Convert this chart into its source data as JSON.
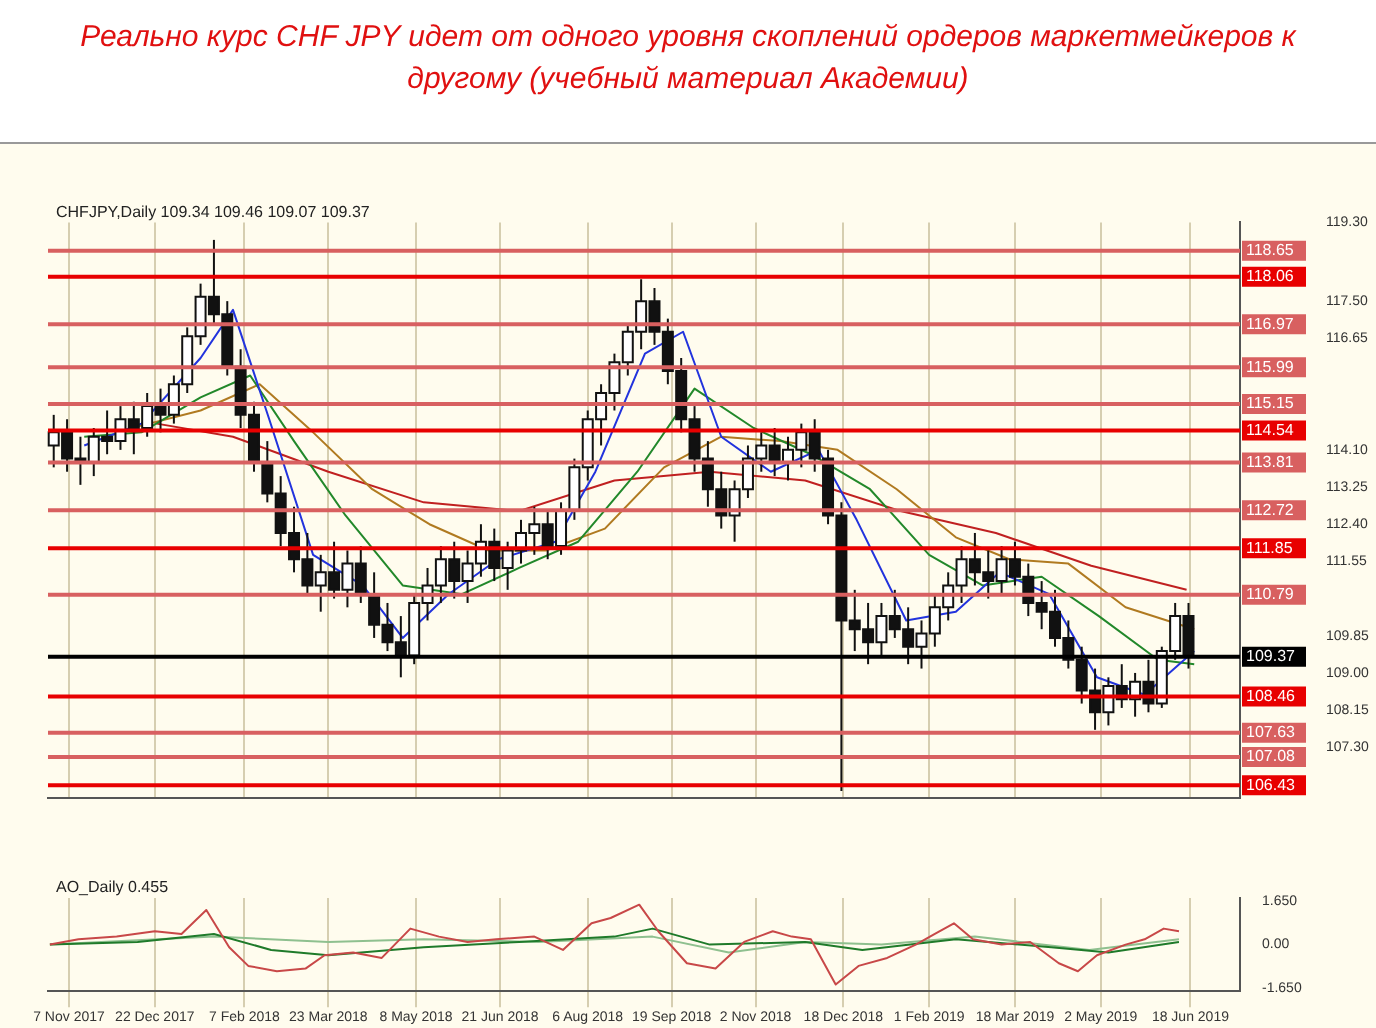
{
  "chart_data": [
    {
      "type": "candlestick",
      "title": "Реально курс CHF JPY идет от одного уровня скоплений ордеров маркетмейкеров к другому (учебный материал Академии)",
      "annotations": [
        "CHFJPY,Daily 109.34 109.46 109.07 109.37"
      ],
      "x": [
        "2017-10-30",
        "2017-11-06",
        "2017-11-13",
        "2017-11-20",
        "2017-11-27",
        "2017-12-04",
        "2017-12-11",
        "2017-12-18",
        "2017-12-25",
        "2018-01-01",
        "2018-01-08",
        "2018-01-15",
        "2018-01-22",
        "2018-01-29",
        "2018-02-05",
        "2018-02-12",
        "2018-02-19",
        "2018-02-26",
        "2018-03-05",
        "2018-03-12",
        "2018-03-19",
        "2018-03-26",
        "2018-04-02",
        "2018-04-09",
        "2018-04-16",
        "2018-04-23",
        "2018-04-30",
        "2018-05-07",
        "2018-05-14",
        "2018-05-21",
        "2018-05-28",
        "2018-06-04",
        "2018-06-11",
        "2018-06-18",
        "2018-06-25",
        "2018-07-02",
        "2018-07-09",
        "2018-07-16",
        "2018-07-23",
        "2018-07-30",
        "2018-08-06",
        "2018-08-13",
        "2018-08-20",
        "2018-08-27",
        "2018-09-03",
        "2018-09-10",
        "2018-09-17",
        "2018-09-24",
        "2018-10-01",
        "2018-10-08",
        "2018-10-15",
        "2018-10-22",
        "2018-10-29",
        "2018-11-05",
        "2018-11-12",
        "2018-11-19",
        "2018-11-26",
        "2018-12-03",
        "2018-12-10",
        "2018-12-17",
        "2018-12-24",
        "2018-12-31",
        "2019-01-07",
        "2019-01-14",
        "2019-01-21",
        "2019-01-28",
        "2019-02-04",
        "2019-02-11",
        "2019-02-18",
        "2019-02-25",
        "2019-03-04",
        "2019-03-11",
        "2019-03-18",
        "2019-03-25",
        "2019-04-01",
        "2019-04-08",
        "2019-04-15",
        "2019-04-22",
        "2019-04-29",
        "2019-05-06",
        "2019-05-13",
        "2019-05-20",
        "2019-05-27",
        "2019-06-03",
        "2019-06-10",
        "2019-06-17"
      ],
      "ohlc": [
        [
          114.2,
          114.9,
          113.7,
          114.5
        ],
        [
          114.5,
          114.8,
          113.6,
          113.9
        ],
        [
          113.9,
          114.4,
          113.3,
          113.8
        ],
        [
          113.8,
          114.6,
          113.5,
          114.4
        ],
        [
          114.4,
          115.0,
          114.0,
          114.3
        ],
        [
          114.3,
          115.1,
          114.1,
          114.8
        ],
        [
          114.8,
          115.2,
          114.0,
          114.6
        ],
        [
          114.6,
          115.4,
          114.4,
          115.1
        ],
        [
          115.1,
          115.5,
          114.5,
          114.9
        ],
        [
          114.9,
          115.8,
          114.7,
          115.6
        ],
        [
          115.6,
          116.9,
          115.4,
          116.7
        ],
        [
          116.7,
          117.9,
          116.5,
          117.6
        ],
        [
          117.6,
          118.9,
          117.0,
          117.2
        ],
        [
          117.2,
          117.5,
          115.8,
          116.0
        ],
        [
          116.0,
          116.4,
          114.6,
          114.9
        ],
        [
          114.9,
          115.2,
          113.6,
          113.8
        ],
        [
          113.8,
          114.3,
          112.9,
          113.1
        ],
        [
          113.1,
          113.5,
          111.9,
          112.2
        ],
        [
          112.2,
          112.8,
          111.3,
          111.6
        ],
        [
          111.6,
          112.2,
          110.8,
          111.0
        ],
        [
          111.0,
          111.7,
          110.4,
          111.3
        ],
        [
          111.3,
          112.0,
          110.7,
          110.9
        ],
        [
          110.9,
          111.8,
          110.5,
          111.5
        ],
        [
          111.5,
          111.9,
          110.6,
          110.8
        ],
        [
          110.8,
          111.3,
          109.8,
          110.1
        ],
        [
          110.1,
          110.6,
          109.5,
          109.7
        ],
        [
          109.7,
          110.3,
          108.9,
          109.4
        ],
        [
          109.4,
          110.8,
          109.2,
          110.6
        ],
        [
          110.6,
          111.4,
          110.2,
          111.0
        ],
        [
          111.0,
          111.9,
          110.6,
          111.6
        ],
        [
          111.6,
          112.0,
          110.7,
          111.1
        ],
        [
          111.1,
          111.8,
          110.6,
          111.5
        ],
        [
          111.5,
          112.4,
          111.2,
          112.0
        ],
        [
          112.0,
          112.3,
          111.1,
          111.4
        ],
        [
          111.4,
          112.0,
          110.9,
          111.8
        ],
        [
          111.8,
          112.5,
          111.5,
          112.2
        ],
        [
          112.2,
          112.8,
          111.7,
          112.4
        ],
        [
          112.4,
          112.7,
          111.6,
          111.9
        ],
        [
          111.9,
          112.9,
          111.7,
          112.7
        ],
        [
          112.7,
          113.9,
          112.5,
          113.7
        ],
        [
          113.7,
          115.0,
          113.4,
          114.8
        ],
        [
          114.8,
          115.6,
          114.2,
          115.4
        ],
        [
          115.4,
          116.3,
          115.0,
          116.1
        ],
        [
          116.1,
          117.0,
          115.8,
          116.8
        ],
        [
          116.8,
          118.0,
          116.4,
          117.5
        ],
        [
          117.5,
          117.8,
          116.5,
          116.8
        ],
        [
          116.8,
          117.1,
          115.6,
          115.9
        ],
        [
          115.9,
          116.2,
          114.5,
          114.8
        ],
        [
          114.8,
          115.1,
          113.6,
          113.9
        ],
        [
          113.9,
          114.3,
          112.8,
          113.2
        ],
        [
          113.2,
          113.6,
          112.3,
          112.6
        ],
        [
          112.6,
          113.4,
          112.0,
          113.2
        ],
        [
          113.2,
          114.2,
          113.0,
          113.9
        ],
        [
          113.9,
          114.5,
          113.6,
          114.2
        ],
        [
          114.2,
          114.6,
          113.5,
          113.8
        ],
        [
          113.8,
          114.4,
          113.4,
          114.1
        ],
        [
          114.1,
          114.7,
          113.7,
          114.5
        ],
        [
          114.5,
          114.8,
          113.6,
          113.9
        ],
        [
          113.9,
          114.1,
          112.4,
          112.6
        ],
        [
          112.6,
          112.9,
          106.3,
          110.2
        ],
        [
          110.2,
          110.9,
          109.5,
          110.0
        ],
        [
          110.0,
          110.6,
          109.2,
          109.7
        ],
        [
          109.7,
          110.6,
          109.4,
          110.3
        ],
        [
          110.3,
          110.9,
          109.8,
          110.0
        ],
        [
          110.0,
          110.5,
          109.2,
          109.6
        ],
        [
          109.6,
          110.2,
          109.1,
          109.9
        ],
        [
          109.9,
          110.8,
          109.6,
          110.5
        ],
        [
          110.5,
          111.3,
          110.2,
          111.0
        ],
        [
          111.0,
          111.9,
          110.6,
          111.6
        ],
        [
          111.6,
          112.2,
          111.0,
          111.3
        ],
        [
          111.3,
          111.8,
          110.7,
          111.1
        ],
        [
          111.1,
          111.9,
          110.8,
          111.6
        ],
        [
          111.6,
          112.0,
          111.0,
          111.2
        ],
        [
          111.2,
          111.5,
          110.3,
          110.6
        ],
        [
          110.6,
          111.1,
          110.0,
          110.4
        ],
        [
          110.4,
          110.9,
          109.6,
          109.8
        ],
        [
          109.8,
          110.2,
          109.1,
          109.3
        ],
        [
          109.3,
          109.6,
          108.3,
          108.6
        ],
        [
          108.6,
          109.1,
          107.7,
          108.1
        ],
        [
          108.1,
          108.9,
          107.8,
          108.7
        ],
        [
          108.7,
          109.2,
          108.2,
          108.4
        ],
        [
          108.4,
          109.0,
          108.0,
          108.8
        ],
        [
          108.8,
          109.3,
          108.1,
          108.3
        ],
        [
          108.3,
          109.6,
          108.2,
          109.5
        ],
        [
          109.5,
          110.6,
          109.3,
          110.3
        ],
        [
          110.3,
          110.6,
          109.1,
          109.4
        ]
      ],
      "series": [
        {
          "type": "line",
          "color": "#2233dd",
          "x": [
            "2017-11-15",
            "2017-12-15",
            "2018-01-15",
            "2018-02-01",
            "2018-02-20",
            "2018-03-15",
            "2018-04-10",
            "2018-05-01",
            "2018-05-25",
            "2018-06-20",
            "2018-07-20",
            "2018-08-10",
            "2018-09-05",
            "2018-09-25",
            "2018-10-15",
            "2018-11-10",
            "2018-12-05",
            "2018-12-25",
            "2019-01-20",
            "2019-02-15",
            "2019-03-10",
            "2019-04-05",
            "2019-04-30",
            "2019-05-25",
            "2019-06-20"
          ],
          "values": [
            114.2,
            114.7,
            116.2,
            117.3,
            114.8,
            111.7,
            111.0,
            109.8,
            110.8,
            111.6,
            112.0,
            113.6,
            116.3,
            116.8,
            114.4,
            113.6,
            114.1,
            112.5,
            110.2,
            110.4,
            111.3,
            110.8,
            108.9,
            108.5,
            109.5
          ]
        },
        {
          "type": "line",
          "color": "#22882a",
          "x": [
            "2017-11-15",
            "2017-12-15",
            "2018-01-15",
            "2018-02-10",
            "2018-03-05",
            "2018-04-01",
            "2018-05-01",
            "2018-06-01",
            "2018-07-01",
            "2018-08-01",
            "2018-09-01",
            "2018-10-01",
            "2018-11-01",
            "2018-12-01",
            "2019-01-01",
            "2019-02-01",
            "2019-03-01",
            "2019-04-01",
            "2019-05-01",
            "2019-06-01",
            "2019-06-20"
          ],
          "values": [
            114.4,
            114.5,
            115.3,
            115.8,
            114.3,
            112.6,
            111.0,
            110.8,
            111.4,
            112.0,
            113.6,
            115.5,
            114.6,
            114.0,
            113.2,
            111.7,
            111.0,
            111.2,
            110.3,
            109.3,
            109.2
          ]
        },
        {
          "type": "line",
          "color": "#b07a20",
          "x": [
            "2017-12-01",
            "2018-01-15",
            "2018-02-15",
            "2018-03-15",
            "2018-04-15",
            "2018-05-15",
            "2018-06-15",
            "2018-07-15",
            "2018-08-15",
            "2018-09-15",
            "2018-10-15",
            "2018-11-15",
            "2018-12-15",
            "2019-01-15",
            "2019-02-15",
            "2019-03-15",
            "2019-04-15",
            "2019-05-15",
            "2019-06-20"
          ],
          "values": [
            114.5,
            115.0,
            115.6,
            114.5,
            113.2,
            112.4,
            111.8,
            111.8,
            112.3,
            113.7,
            114.4,
            114.3,
            114.1,
            113.2,
            112.1,
            111.6,
            111.5,
            110.5,
            110.0
          ]
        },
        {
          "type": "line",
          "color": "#c02020",
          "x": [
            "2017-12-23",
            "2018-02-01",
            "2018-03-23",
            "2018-05-12",
            "2018-07-01",
            "2018-08-20",
            "2018-10-09",
            "2018-11-28",
            "2019-01-17",
            "2019-03-08",
            "2019-04-27",
            "2019-06-16"
          ],
          "values": [
            114.7,
            114.4,
            113.6,
            112.9,
            112.7,
            113.4,
            113.6,
            113.4,
            112.7,
            112.2,
            111.45,
            110.9
          ]
        }
      ],
      "ref_lines": [
        {
          "axis": "y",
          "value": 118.65,
          "label": "118.65",
          "color": "#d86060"
        },
        {
          "axis": "y",
          "value": 118.06,
          "label": "118.06",
          "color": "#e80000"
        },
        {
          "axis": "y",
          "value": 116.97,
          "label": "116.97",
          "color": "#d86060"
        },
        {
          "axis": "y",
          "value": 115.99,
          "label": "115.99",
          "color": "#d86060"
        },
        {
          "axis": "y",
          "value": 115.15,
          "label": "115.15",
          "color": "#d86060"
        },
        {
          "axis": "y",
          "value": 114.54,
          "label": "114.54",
          "color": "#e80000"
        },
        {
          "axis": "y",
          "value": 113.81,
          "label": "113.81",
          "color": "#d86060"
        },
        {
          "axis": "y",
          "value": 112.72,
          "label": "112.72",
          "color": "#d86060"
        },
        {
          "axis": "y",
          "value": 111.85,
          "label": "111.85",
          "color": "#e80000"
        },
        {
          "axis": "y",
          "value": 110.79,
          "label": "110.79",
          "color": "#d86060"
        },
        {
          "axis": "y",
          "value": 109.37,
          "label": "109.37",
          "color": "#000000"
        },
        {
          "axis": "y",
          "value": 108.46,
          "label": "108.46",
          "color": "#e80000"
        },
        {
          "axis": "y",
          "value": 107.63,
          "label": "107.63",
          "color": "#d86060"
        },
        {
          "axis": "y",
          "value": 107.08,
          "label": "107.08",
          "color": "#d86060"
        },
        {
          "axis": "y",
          "value": 106.43,
          "label": "106.43",
          "color": "#e80000"
        }
      ],
      "xlim": [
        "2017-10-27",
        "2019-07-14"
      ],
      "xticks": [
        {
          "value": "2017-11-07",
          "label": null
        },
        {
          "value": "2017-12-22",
          "label": null
        },
        {
          "value": "2018-02-07",
          "label": null
        },
        {
          "value": "2018-03-23",
          "label": null
        },
        {
          "value": "2018-05-08",
          "label": null
        },
        {
          "value": "2018-06-21",
          "label": null
        },
        {
          "value": "2018-08-06",
          "label": null
        },
        {
          "value": "2018-09-19",
          "label": null
        },
        {
          "value": "2018-11-02",
          "label": null
        },
        {
          "value": "2018-12-18",
          "label": null
        },
        {
          "value": "2019-02-01",
          "label": null
        },
        {
          "value": "2019-03-18",
          "label": null
        },
        {
          "value": "2019-05-02",
          "label": null
        },
        {
          "value": "2019-06-18",
          "label": null
        }
      ],
      "ylim": [
        106.15,
        119.3
      ],
      "yticks": [
        {
          "value": 107.3,
          "label": "107.30"
        },
        {
          "value": 108.15,
          "label": "108.15"
        },
        {
          "value": 109,
          "label": "109.00"
        },
        {
          "value": 109.85,
          "label": "109.85"
        },
        {
          "value": 111.55,
          "label": "111.55"
        },
        {
          "value": 112.4,
          "label": "112.40"
        },
        {
          "value": 113.25,
          "label": "113.25"
        },
        {
          "value": 114.1,
          "label": "114.10"
        },
        {
          "value": 116.65,
          "label": "116.65"
        },
        {
          "value": 117.5,
          "label": "117.50"
        },
        {
          "value": 119.3,
          "label": "119.30"
        }
      ],
      "grid": "x",
      "legend": false,
      "marker": "none",
      "tick_labels": "y"
    },
    {
      "type": "line",
      "annotations": [
        "AO_Daily 0.455"
      ],
      "series": [
        {
          "color": "#c84848",
          "x": [
            "2017-10-28",
            "2017-11-12",
            "2017-12-02",
            "2017-12-22",
            "2018-01-05",
            "2018-01-18",
            "2018-01-30",
            "2018-02-09",
            "2018-02-24",
            "2018-03-11",
            "2018-03-21",
            "2018-04-05",
            "2018-04-20",
            "2018-05-05",
            "2018-05-20",
            "2018-06-04",
            "2018-06-19",
            "2018-07-09",
            "2018-07-24",
            "2018-08-08",
            "2018-08-18",
            "2018-09-02",
            "2018-09-12",
            "2018-09-27",
            "2018-10-12",
            "2018-10-27",
            "2018-11-11",
            "2018-11-21",
            "2018-12-01",
            "2018-12-14",
            "2018-12-26",
            "2019-01-10",
            "2019-01-25",
            "2019-02-04",
            "2019-02-14",
            "2019-02-24",
            "2019-03-11",
            "2019-03-26",
            "2019-04-10",
            "2019-04-20",
            "2019-04-30",
            "2019-05-15",
            "2019-05-25",
            "2019-06-04",
            "2019-06-12"
          ],
          "values": [
            0,
            0.2,
            0.3,
            0.5,
            0.4,
            1.3,
            -0.1,
            -0.8,
            -1.0,
            -0.9,
            -0.4,
            -0.3,
            -0.5,
            0.6,
            0.3,
            0.1,
            0.2,
            0.3,
            -0.2,
            0.8,
            1.0,
            1.5,
            0.5,
            -0.7,
            -0.9,
            0.1,
            0.5,
            0.3,
            0.2,
            -1.5,
            -0.8,
            -0.5,
            0,
            0.4,
            0.8,
            0.2,
            0,
            0.1,
            -0.7,
            -1.0,
            -0.4,
            0,
            0.2,
            0.6,
            0.5
          ]
        },
        {
          "color": "#1f7a2a",
          "x": [
            "2017-10-28",
            "2017-12-13",
            "2018-01-22",
            "2018-02-21",
            "2018-03-23",
            "2018-05-12",
            "2018-07-01",
            "2018-08-20",
            "2018-09-09",
            "2018-10-09",
            "2018-11-28",
            "2018-12-28",
            "2019-02-15",
            "2019-04-06",
            "2019-05-06",
            "2019-06-12"
          ],
          "values": [
            0,
            0.1,
            0.4,
            -0.2,
            -0.4,
            -0.1,
            0.1,
            0.3,
            0.6,
            0,
            0.1,
            -0.2,
            0.2,
            -0.1,
            -0.3,
            0.1
          ]
        },
        {
          "color": "#8fc08f",
          "x": [
            "2017-10-28",
            "2018-01-22",
            "2018-03-23",
            "2018-05-12",
            "2018-07-11",
            "2018-09-09",
            "2018-10-19",
            "2018-11-28",
            "2019-01-07",
            "2019-02-25",
            "2019-04-26",
            "2019-06-12"
          ],
          "values": [
            0,
            0.3,
            0.1,
            0.2,
            0.1,
            0.3,
            -0.3,
            0.1,
            0,
            0.3,
            -0.2,
            0.2
          ]
        }
      ],
      "xlim": [
        "2017-10-27",
        "2019-07-14"
      ],
      "xticks": [
        {
          "value": "2017-11-07",
          "label": "7 Nov 2017"
        },
        {
          "value": "2017-12-22",
          "label": "22 Dec 2017"
        },
        {
          "value": "2018-02-07",
          "label": "7 Feb 2018"
        },
        {
          "value": "2018-03-23",
          "label": "23 Mar 2018"
        },
        {
          "value": "2018-05-08",
          "label": "8 May 2018"
        },
        {
          "value": "2018-06-21",
          "label": "21 Jun 2018"
        },
        {
          "value": "2018-08-06",
          "label": "6 Aug 2018"
        },
        {
          "value": "2018-09-19",
          "label": "19 Sep 2018"
        },
        {
          "value": "2018-11-02",
          "label": "2 Nov 2018"
        },
        {
          "value": "2018-12-18",
          "label": "18 Dec 2018"
        },
        {
          "value": "2019-02-01",
          "label": "1 Feb 2019"
        },
        {
          "value": "2019-03-18",
          "label": "18 Mar 2019"
        },
        {
          "value": "2019-05-02",
          "label": "2 May 2019"
        },
        {
          "value": "2019-06-18",
          "label": "18 Jun 2019"
        }
      ],
      "ylim": [
        -1.75,
        1.75
      ],
      "yticks": [
        {
          "value": -1.65,
          "label": "-1.650"
        },
        {
          "value": 0,
          "label": "0.00"
        },
        {
          "value": 1.65,
          "label": "1.650"
        }
      ],
      "grid": "x",
      "legend": false,
      "marker": "none"
    }
  ]
}
